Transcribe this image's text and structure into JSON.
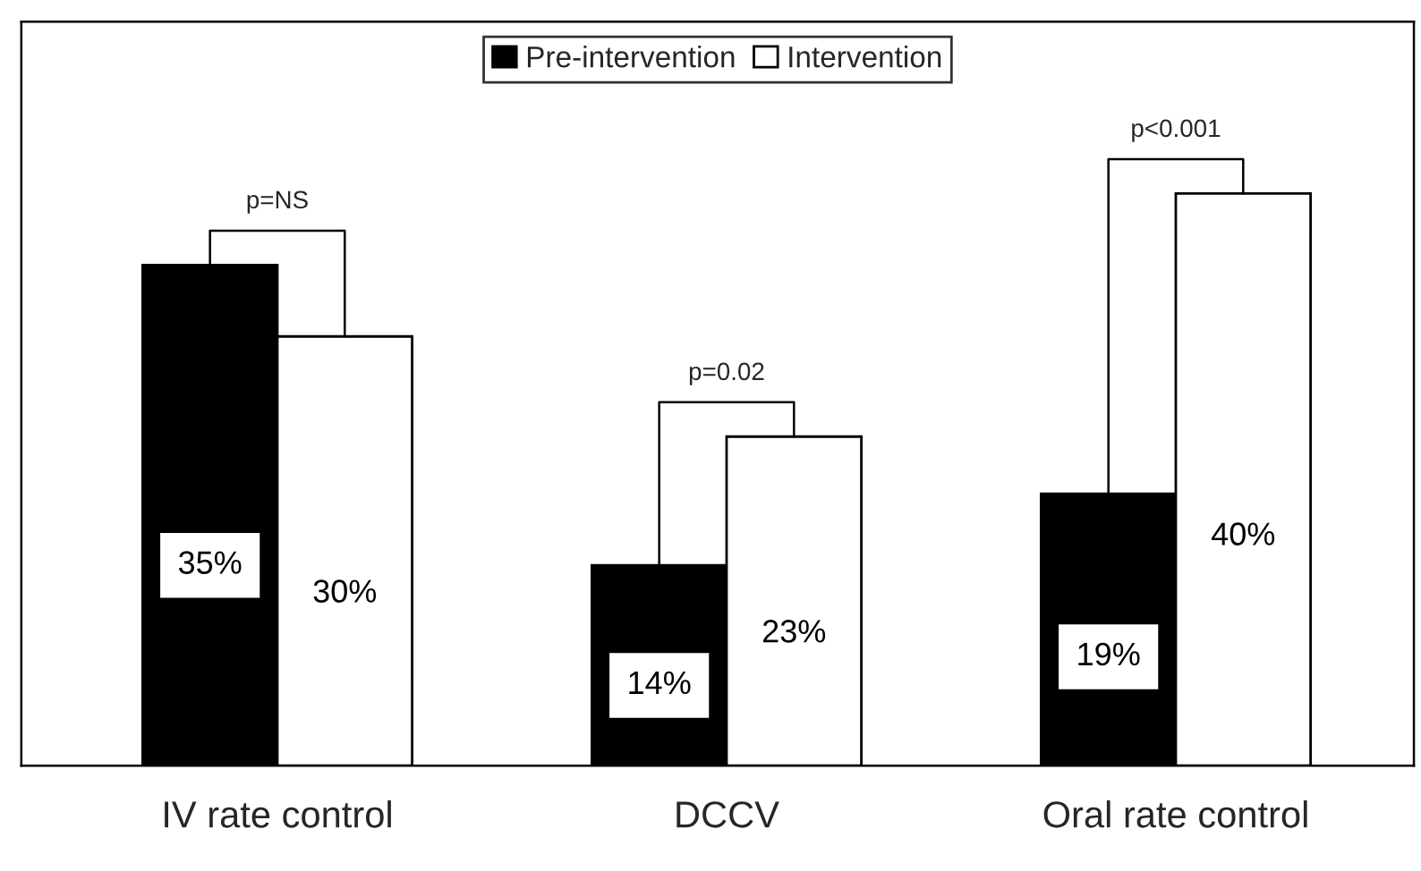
{
  "chart_data": {
    "type": "bar",
    "categories": [
      "IV rate control",
      "DCCV",
      "Oral rate control"
    ],
    "series": [
      {
        "name": "Pre-intervention",
        "color": "#000000",
        "values": [
          35,
          14,
          19
        ],
        "value_labels": [
          "35%",
          "14%",
          "19%"
        ]
      },
      {
        "name": "Intervention",
        "color": "#ffffff",
        "values": [
          30,
          23,
          40
        ],
        "value_labels": [
          "30%",
          "23%",
          "40%"
        ]
      }
    ],
    "annotations": [
      "p=NS",
      "p=0.02",
      "p<0.001"
    ],
    "legend": "top",
    "grid": false
  }
}
